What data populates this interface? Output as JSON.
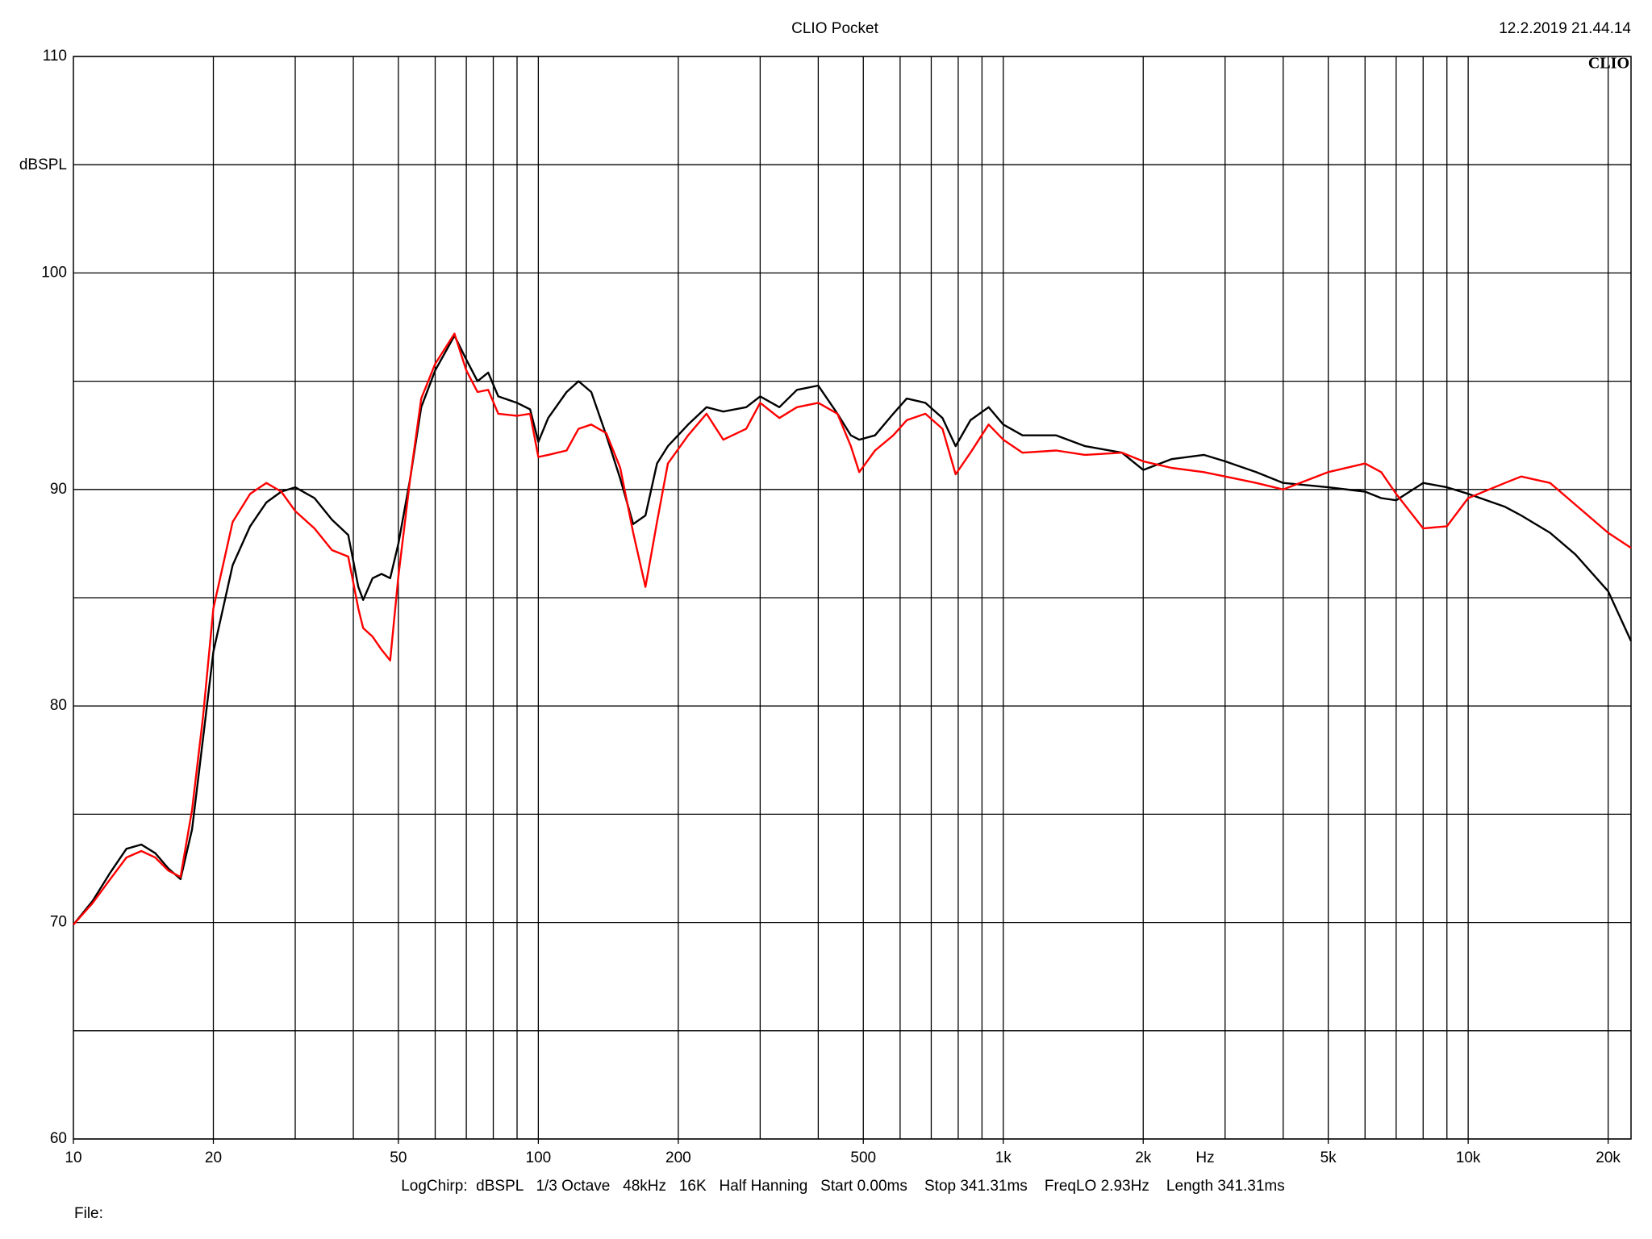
{
  "chart_data": {
    "type": "line",
    "title": "CLIO Pocket",
    "timestamp": "12.2.2019 21.44.14",
    "logo": "CLIO",
    "ylabel": "dBSPL",
    "xlabel": "Hz",
    "footer": "LogChirp:  dBSPL   1/3 Octave   48kHz   16K   Half Hanning   Start 0.00ms    Stop 341.31ms    FreqLO 2.93Hz    Length 341.31ms",
    "file_label": "File:",
    "xscale": "log",
    "grid": true,
    "xlim": [
      10,
      22400
    ],
    "ylim": [
      60,
      110
    ],
    "xticks": [
      10,
      20,
      50,
      100,
      200,
      500,
      {
        "value": 1000,
        "label": "1k"
      },
      {
        "value": 2000,
        "label": "2k"
      },
      {
        "value": 5000,
        "label": "5k"
      },
      {
        "value": 10000,
        "label": "10k"
      },
      {
        "value": 20000,
        "label": "20k"
      }
    ],
    "xgrid": [
      20,
      30,
      40,
      50,
      60,
      70,
      80,
      90,
      100,
      200,
      300,
      400,
      500,
      600,
      700,
      800,
      900,
      1000,
      2000,
      3000,
      4000,
      5000,
      6000,
      7000,
      8000,
      9000,
      10000,
      20000
    ],
    "yticks": [
      60,
      70,
      80,
      90,
      100,
      110
    ],
    "ygrid": [
      65,
      75,
      85,
      95,
      105
    ],
    "x": [
      10,
      11,
      12,
      13,
      14,
      15,
      16,
      17,
      18,
      19,
      20,
      22,
      24,
      26,
      28,
      30,
      33,
      36,
      39,
      41,
      42,
      44,
      46,
      48,
      50,
      53,
      56,
      60,
      66,
      70,
      74,
      78,
      82,
      90,
      96,
      100,
      105,
      115,
      122,
      130,
      140,
      150,
      160,
      170,
      180,
      190,
      210,
      230,
      250,
      280,
      300,
      330,
      360,
      400,
      440,
      470,
      490,
      530,
      580,
      620,
      680,
      740,
      790,
      850,
      930,
      1000,
      1100,
      1300,
      1500,
      1800,
      2000,
      2300,
      2700,
      3000,
      3500,
      4000,
      5000,
      6000,
      6500,
      7000,
      8000,
      9000,
      10000,
      12000,
      13000,
      15000,
      17000,
      20000,
      22400
    ],
    "series": [
      {
        "color": "#000000",
        "values": [
          69.9,
          71.0,
          72.3,
          73.4,
          73.6,
          73.2,
          72.5,
          72.0,
          74.3,
          78.5,
          82.5,
          86.5,
          88.3,
          89.4,
          89.9,
          90.1,
          89.6,
          88.6,
          87.9,
          85.5,
          84.9,
          85.9,
          86.1,
          85.9,
          87.5,
          90.5,
          93.8,
          95.5,
          97.1,
          96.0,
          95.0,
          95.4,
          94.3,
          94.0,
          93.7,
          92.2,
          93.3,
          94.5,
          95.0,
          94.5,
          92.5,
          90.5,
          88.4,
          88.8,
          91.2,
          92.0,
          93.0,
          93.8,
          93.6,
          93.8,
          94.3,
          93.8,
          94.6,
          94.8,
          93.5,
          92.5,
          92.3,
          92.5,
          93.5,
          94.2,
          94.0,
          93.3,
          92.0,
          93.2,
          93.8,
          93.0,
          92.5,
          92.5,
          92.0,
          91.7,
          90.9,
          91.4,
          91.6,
          91.3,
          90.8,
          90.3,
          90.1,
          89.9,
          89.6,
          89.5,
          90.3,
          90.1,
          89.8,
          89.2,
          88.8,
          88.0,
          87.0,
          85.3,
          83.0
        ]
      },
      {
        "color": "#ff0000",
        "values": [
          69.9,
          70.9,
          72.0,
          73.0,
          73.3,
          73.0,
          72.4,
          72.1,
          75.2,
          79.5,
          84.5,
          88.5,
          89.8,
          90.3,
          89.9,
          89.0,
          88.2,
          87.2,
          86.9,
          84.5,
          83.6,
          83.2,
          82.6,
          82.1,
          86.0,
          90.5,
          94.2,
          95.8,
          97.2,
          95.5,
          94.5,
          94.6,
          93.5,
          93.4,
          93.5,
          91.5,
          91.6,
          91.8,
          92.8,
          93.0,
          92.6,
          91.0,
          88.0,
          85.5,
          88.5,
          91.2,
          92.5,
          93.5,
          92.3,
          92.8,
          94.0,
          93.3,
          93.8,
          94.0,
          93.5,
          92.0,
          90.8,
          91.8,
          92.5,
          93.2,
          93.5,
          92.8,
          90.7,
          91.7,
          93.0,
          92.3,
          91.7,
          91.8,
          91.6,
          91.7,
          91.3,
          91.0,
          90.8,
          90.6,
          90.3,
          90.0,
          90.8,
          91.2,
          90.8,
          89.8,
          88.2,
          88.3,
          89.6,
          90.3,
          90.6,
          90.3,
          89.3,
          88.0,
          87.3
        ]
      }
    ]
  }
}
